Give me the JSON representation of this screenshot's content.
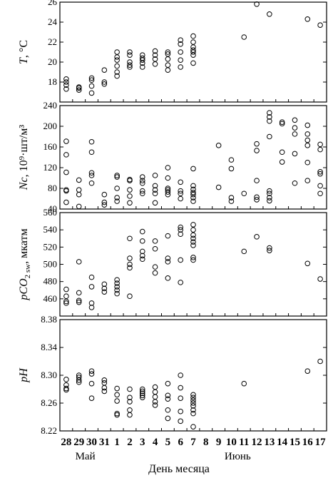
{
  "chart_data": {
    "type": "scatter",
    "x_categories": [
      "28",
      "29",
      "30",
      "31",
      "1",
      "2",
      "3",
      "4",
      "5",
      "6",
      "7",
      "8",
      "9",
      "10",
      "11",
      "12",
      "13",
      "14",
      "15",
      "16",
      "17"
    ],
    "xlabel": "День месяца",
    "month_labels": [
      {
        "text": "Май",
        "at": 29.5
      },
      {
        "text": "Июнь",
        "at": 10.5
      }
    ],
    "panels": [
      {
        "id": "temperature",
        "ylabel_main": "T",
        "ylabel_unit": ", °C",
        "ylim": [
          16,
          26
        ],
        "yticks": [
          16,
          18,
          20,
          22,
          24,
          26
        ],
        "tick_labels_shown": [
          "18",
          "20",
          "22",
          "24",
          "26"
        ],
        "points": [
          [
            "28",
            17.3
          ],
          [
            "28",
            17.7
          ],
          [
            "28",
            18.0
          ],
          [
            "28",
            18.3
          ],
          [
            "29",
            17.2
          ],
          [
            "29",
            17.4
          ],
          [
            "29",
            17.5
          ],
          [
            "30",
            16.9
          ],
          [
            "30",
            17.6
          ],
          [
            "30",
            18.2
          ],
          [
            "30",
            18.4
          ],
          [
            "31",
            17.8
          ],
          [
            "31",
            18.0
          ],
          [
            "31",
            19.2
          ],
          [
            "1",
            18.6
          ],
          [
            "1",
            19.0
          ],
          [
            "1",
            19.6
          ],
          [
            "1",
            20.2
          ],
          [
            "1",
            20.5
          ],
          [
            "1",
            21.0
          ],
          [
            "2",
            19.5
          ],
          [
            "2",
            19.7
          ],
          [
            "2",
            20.0
          ],
          [
            "2",
            20.7
          ],
          [
            "2",
            21.0
          ],
          [
            "3",
            19.5
          ],
          [
            "3",
            19.9
          ],
          [
            "3",
            20.2
          ],
          [
            "3",
            20.4
          ],
          [
            "3",
            20.7
          ],
          [
            "4",
            19.8
          ],
          [
            "4",
            20.3
          ],
          [
            "4",
            20.7
          ],
          [
            "4",
            21.1
          ],
          [
            "5",
            19.2
          ],
          [
            "5",
            19.7
          ],
          [
            "5",
            20.3
          ],
          [
            "5",
            20.8
          ],
          [
            "5",
            21.0
          ],
          [
            "6",
            19.5
          ],
          [
            "6",
            20.2
          ],
          [
            "6",
            21.0
          ],
          [
            "6",
            21.8
          ],
          [
            "6",
            22.2
          ],
          [
            "7",
            19.9
          ],
          [
            "7",
            20.7
          ],
          [
            "7",
            21.0
          ],
          [
            "7",
            21.2
          ],
          [
            "7",
            21.5
          ],
          [
            "7",
            22.0
          ],
          [
            "7",
            22.6
          ],
          [
            "11",
            22.5
          ],
          [
            "12",
            25.8
          ],
          [
            "13",
            24.8
          ],
          [
            "16",
            24.3
          ],
          [
            "17",
            23.7
          ]
        ]
      },
      {
        "id": "nc",
        "ylabel_main": "Nc",
        "ylabel_unit": ", 10⁹·шт/м³",
        "ylim": [
          40,
          240
        ],
        "yticks": [
          40,
          80,
          120,
          160,
          200,
          240
        ],
        "tick_labels_shown": [
          "40",
          "80",
          "120",
          "160",
          "200",
          "240"
        ],
        "points": [
          [
            "28",
            53
          ],
          [
            "28",
            75
          ],
          [
            "28",
            77
          ],
          [
            "28",
            111
          ],
          [
            "28",
            145
          ],
          [
            "28",
            171
          ],
          [
            "29",
            45
          ],
          [
            "29",
            68
          ],
          [
            "29",
            77
          ],
          [
            "29",
            96
          ],
          [
            "30",
            90
          ],
          [
            "30",
            105
          ],
          [
            "30",
            110
          ],
          [
            "30",
            150
          ],
          [
            "30",
            170
          ],
          [
            "31",
            48
          ],
          [
            "31",
            53
          ],
          [
            "31",
            68
          ],
          [
            "1",
            55
          ],
          [
            "1",
            62
          ],
          [
            "1",
            80
          ],
          [
            "1",
            102
          ],
          [
            "1",
            105
          ],
          [
            "2",
            52
          ],
          [
            "2",
            65
          ],
          [
            "2",
            77
          ],
          [
            "2",
            95
          ],
          [
            "2",
            97
          ],
          [
            "3",
            70
          ],
          [
            "3",
            75
          ],
          [
            "3",
            90
          ],
          [
            "3",
            95
          ],
          [
            "3",
            102
          ],
          [
            "4",
            52
          ],
          [
            "4",
            70
          ],
          [
            "4",
            77
          ],
          [
            "4",
            85
          ],
          [
            "4",
            105
          ],
          [
            "5",
            68
          ],
          [
            "5",
            73
          ],
          [
            "5",
            77
          ],
          [
            "5",
            80
          ],
          [
            "5",
            100
          ],
          [
            "5",
            120
          ],
          [
            "6",
            60
          ],
          [
            "6",
            70
          ],
          [
            "6",
            75
          ],
          [
            "6",
            92
          ],
          [
            "7",
            55
          ],
          [
            "7",
            62
          ],
          [
            "7",
            68
          ],
          [
            "7",
            72
          ],
          [
            "7",
            78
          ],
          [
            "7",
            85
          ],
          [
            "7",
            118
          ],
          [
            "9",
            82
          ],
          [
            "9",
            163
          ],
          [
            "10",
            55
          ],
          [
            "10",
            62
          ],
          [
            "10",
            118
          ],
          [
            "10",
            135
          ],
          [
            "11",
            70
          ],
          [
            "12",
            58
          ],
          [
            "12",
            63
          ],
          [
            "12",
            95
          ],
          [
            "12",
            153
          ],
          [
            "12",
            166
          ],
          [
            "13",
            56
          ],
          [
            "13",
            62
          ],
          [
            "13",
            70
          ],
          [
            "13",
            75
          ],
          [
            "13",
            180
          ],
          [
            "13",
            210
          ],
          [
            "13",
            218
          ],
          [
            "13",
            226
          ],
          [
            "14",
            131
          ],
          [
            "14",
            150
          ],
          [
            "14",
            205
          ],
          [
            "14",
            208
          ],
          [
            "15",
            90
          ],
          [
            "15",
            147
          ],
          [
            "15",
            185
          ],
          [
            "15",
            197
          ],
          [
            "15",
            212
          ],
          [
            "16",
            95
          ],
          [
            "16",
            130
          ],
          [
            "16",
            163
          ],
          [
            "16",
            173
          ],
          [
            "16",
            185
          ],
          [
            "16",
            202
          ],
          [
            "17",
            70
          ],
          [
            "17",
            85
          ],
          [
            "17",
            108
          ],
          [
            "17",
            112
          ],
          [
            "17",
            155
          ],
          [
            "17",
            165
          ]
        ]
      },
      {
        "id": "pco2",
        "ylabel_main": "pCO",
        "ylabel_sub": "2 sw",
        "ylabel_unit": ", мкатм",
        "ylim": [
          440,
          560
        ],
        "yticks": [
          440,
          460,
          480,
          500,
          520,
          540,
          560
        ],
        "tick_labels_shown": [
          "460",
          "480",
          "500",
          "520",
          "540",
          "560"
        ],
        "points": [
          [
            "28",
            455
          ],
          [
            "28",
            457
          ],
          [
            "28",
            463
          ],
          [
            "28",
            471
          ],
          [
            "29",
            456
          ],
          [
            "29",
            458
          ],
          [
            "29",
            467
          ],
          [
            "29",
            503
          ],
          [
            "30",
            450
          ],
          [
            "30",
            455
          ],
          [
            "30",
            474
          ],
          [
            "30",
            485
          ],
          [
            "31",
            468
          ],
          [
            "31",
            472
          ],
          [
            "31",
            477
          ],
          [
            "1",
            466
          ],
          [
            "1",
            470
          ],
          [
            "1",
            474
          ],
          [
            "1",
            478
          ],
          [
            "1",
            482
          ],
          [
            "2",
            463
          ],
          [
            "2",
            496
          ],
          [
            "2",
            500
          ],
          [
            "2",
            507
          ],
          [
            "2",
            530
          ],
          [
            "3",
            506
          ],
          [
            "3",
            510
          ],
          [
            "3",
            515
          ],
          [
            "3",
            527
          ],
          [
            "3",
            538
          ],
          [
            "4",
            490
          ],
          [
            "4",
            497
          ],
          [
            "4",
            518
          ],
          [
            "4",
            527
          ],
          [
            "5",
            484
          ],
          [
            "5",
            503
          ],
          [
            "5",
            507
          ],
          [
            "5",
            533
          ],
          [
            "6",
            479
          ],
          [
            "6",
            505
          ],
          [
            "6",
            535
          ],
          [
            "6",
            540
          ],
          [
            "6",
            543
          ],
          [
            "7",
            505
          ],
          [
            "7",
            508
          ],
          [
            "7",
            522
          ],
          [
            "7",
            526
          ],
          [
            "7",
            530
          ],
          [
            "7",
            534
          ],
          [
            "7",
            540
          ],
          [
            "7",
            546
          ],
          [
            "11",
            515
          ],
          [
            "12",
            532
          ],
          [
            "13",
            516
          ],
          [
            "13",
            519
          ],
          [
            "16",
            501
          ],
          [
            "17",
            483
          ]
        ]
      },
      {
        "id": "ph",
        "ylabel_main": "pH",
        "ylim": [
          8.22,
          8.38
        ],
        "yticks": [
          8.22,
          8.26,
          8.3,
          8.34,
          8.38
        ],
        "tick_labels_shown": [
          "8.22",
          "8.26",
          "8.30",
          "8.34",
          "8.38"
        ],
        "points": [
          [
            "28",
            8.279
          ],
          [
            "28",
            8.281
          ],
          [
            "28",
            8.286
          ],
          [
            "28",
            8.294
          ],
          [
            "29",
            8.29
          ],
          [
            "29",
            8.293
          ],
          [
            "29",
            8.297
          ],
          [
            "29",
            8.3
          ],
          [
            "30",
            8.267
          ],
          [
            "30",
            8.288
          ],
          [
            "30",
            8.302
          ],
          [
            "30",
            8.306
          ],
          [
            "31",
            8.277
          ],
          [
            "31",
            8.282
          ],
          [
            "31",
            8.289
          ],
          [
            "31",
            8.293
          ],
          [
            "1",
            8.243
          ],
          [
            "1",
            8.245
          ],
          [
            "1",
            8.263
          ],
          [
            "1",
            8.272
          ],
          [
            "1",
            8.281
          ],
          [
            "2",
            8.243
          ],
          [
            "2",
            8.25
          ],
          [
            "2",
            8.262
          ],
          [
            "2",
            8.268
          ],
          [
            "2",
            8.28
          ],
          [
            "3",
            8.268
          ],
          [
            "3",
            8.271
          ],
          [
            "3",
            8.274
          ],
          [
            "3",
            8.277
          ],
          [
            "3",
            8.28
          ],
          [
            "4",
            8.257
          ],
          [
            "4",
            8.262
          ],
          [
            "4",
            8.269
          ],
          [
            "4",
            8.276
          ],
          [
            "4",
            8.283
          ],
          [
            "5",
            8.238
          ],
          [
            "5",
            8.25
          ],
          [
            "5",
            8.266
          ],
          [
            "5",
            8.271
          ],
          [
            "5",
            8.288
          ],
          [
            "6",
            8.234
          ],
          [
            "6",
            8.248
          ],
          [
            "6",
            8.267
          ],
          [
            "6",
            8.282
          ],
          [
            "6",
            8.3
          ],
          [
            "7",
            8.226
          ],
          [
            "7",
            8.245
          ],
          [
            "7",
            8.25
          ],
          [
            "7",
            8.256
          ],
          [
            "7",
            8.26
          ],
          [
            "7",
            8.264
          ],
          [
            "7",
            8.268
          ],
          [
            "7",
            8.272
          ],
          [
            "11",
            8.288
          ],
          [
            "16",
            8.306
          ],
          [
            "17",
            8.32
          ]
        ]
      }
    ]
  }
}
